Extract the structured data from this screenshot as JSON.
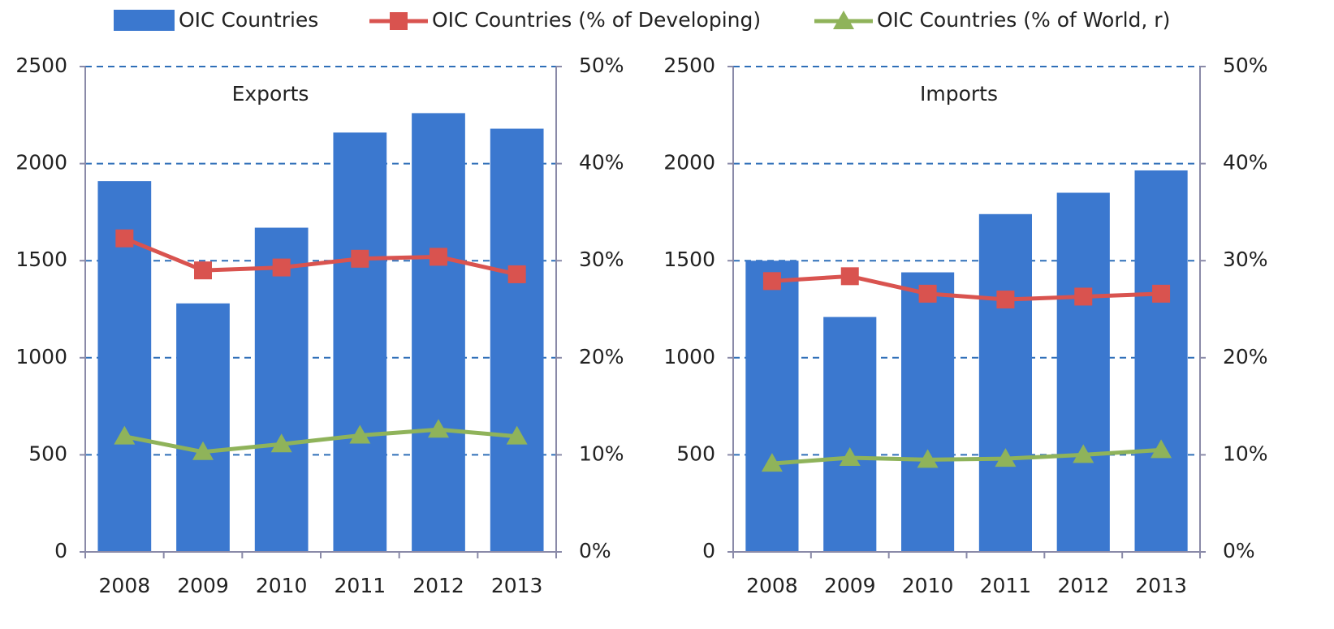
{
  "chart_data": [
    {
      "type": "bar_line",
      "title": "Exports",
      "categories": [
        "2008",
        "2009",
        "2010",
        "2011",
        "2012",
        "2013"
      ],
      "series": [
        {
          "name": "OIC Countries",
          "color": "#3b78cf",
          "values": [
            1910,
            1280,
            1670,
            2160,
            2260,
            2180
          ]
        },
        {
          "name": "OIC Countries (% of Developing)",
          "color": "#d9534f",
          "axis": "y2",
          "values": [
            32.3,
            29.0,
            29.3,
            30.2,
            30.4,
            28.6
          ]
        },
        {
          "name": "OIC Countries (% of World, r)",
          "color": "#8fb35a",
          "axis": "y2",
          "values": [
            11.9,
            10.3,
            11.1,
            12.0,
            12.6,
            11.9
          ]
        }
      ],
      "ylim": [
        0,
        2500
      ],
      "yticks": [
        0,
        500,
        1000,
        1500,
        2000,
        2500
      ],
      "y2lim": [
        0,
        50
      ],
      "y2ticks": [
        {
          "value": 0,
          "label": "0%"
        },
        {
          "value": 10,
          "label": "10%"
        },
        {
          "value": 20,
          "label": "20%"
        },
        {
          "value": 30,
          "label": "30%"
        },
        {
          "value": 40,
          "label": "40%"
        },
        {
          "value": 50,
          "label": "50%"
        }
      ],
      "grid": true
    },
    {
      "type": "bar_line",
      "title": "Imports",
      "categories": [
        "2008",
        "2009",
        "2010",
        "2011",
        "2012",
        "2013"
      ],
      "series": [
        {
          "color": "#3b78cf",
          "values": [
            1500,
            1210,
            1440,
            1740,
            1850,
            1965
          ]
        },
        {
          "color": "#d9534f",
          "axis": "y2",
          "values": [
            27.9,
            28.4,
            26.6,
            26.0,
            26.3,
            26.6
          ]
        },
        {
          "color": "#8fb35a",
          "axis": "y2",
          "values": [
            9.1,
            9.7,
            9.5,
            9.6,
            10.0,
            10.5
          ]
        }
      ],
      "ylim": [
        0,
        2500
      ],
      "yticks": [
        0,
        500,
        1000,
        1500,
        2000,
        2500
      ],
      "y2lim": [
        0,
        50
      ],
      "y2ticks": [
        {
          "value": 0,
          "label": "0%"
        },
        {
          "value": 10,
          "label": "10%"
        },
        {
          "value": 20,
          "label": "20%"
        },
        {
          "value": 30,
          "label": "30%"
        },
        {
          "value": 40,
          "label": "40%"
        },
        {
          "value": 50,
          "label": "50%"
        }
      ],
      "grid": true
    }
  ]
}
